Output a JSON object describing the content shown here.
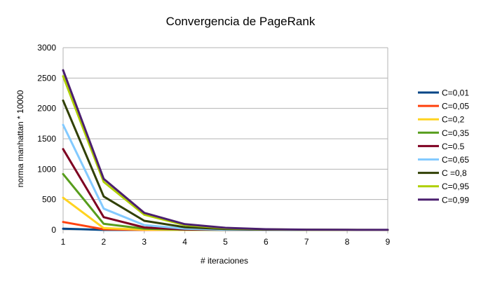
{
  "chart_data": {
    "type": "line",
    "title": "Convergencia de PageRank",
    "xlabel": "# iteraciones",
    "ylabel": "norma manhattan * 10000",
    "x": [
      1,
      2,
      3,
      4,
      5,
      6,
      7,
      8,
      9
    ],
    "xlim": [
      1,
      9
    ],
    "ylim": [
      0,
      3000
    ],
    "yticks": [
      0,
      500,
      1000,
      1500,
      2000,
      2500,
      3000
    ],
    "grid": "horizontal",
    "legend_position": "right",
    "series": [
      {
        "name": "C=0,01",
        "color": "#004586",
        "values": [
          20,
          0,
          0,
          0,
          0,
          0,
          0,
          0,
          0
        ]
      },
      {
        "name": "C=0,05",
        "color": "#ff420e",
        "values": [
          130,
          10,
          0,
          0,
          0,
          0,
          0,
          0,
          0
        ]
      },
      {
        "name": "C=0,2",
        "color": "#ffd320",
        "values": [
          530,
          30,
          5,
          0,
          0,
          0,
          0,
          0,
          0
        ]
      },
      {
        "name": "C=0,35",
        "color": "#579d1c",
        "values": [
          920,
          100,
          20,
          5,
          0,
          0,
          0,
          0,
          0
        ]
      },
      {
        "name": "C=0.5",
        "color": "#7e0021",
        "values": [
          1330,
          210,
          40,
          8,
          2,
          0,
          0,
          0,
          0
        ]
      },
      {
        "name": "C=0,65",
        "color": "#83caff",
        "values": [
          1730,
          350,
          80,
          20,
          5,
          1,
          0,
          0,
          0
        ]
      },
      {
        "name": "C =0,8",
        "color": "#314004",
        "values": [
          2130,
          550,
          150,
          45,
          15,
          5,
          1,
          0,
          0
        ]
      },
      {
        "name": "C=0,95",
        "color": "#aecf00",
        "values": [
          2530,
          790,
          250,
          80,
          28,
          10,
          4,
          1,
          0
        ]
      },
      {
        "name": "C=0,99",
        "color": "#4b1f6f",
        "values": [
          2630,
          840,
          280,
          95,
          35,
          12,
          5,
          2,
          1
        ]
      }
    ]
  }
}
